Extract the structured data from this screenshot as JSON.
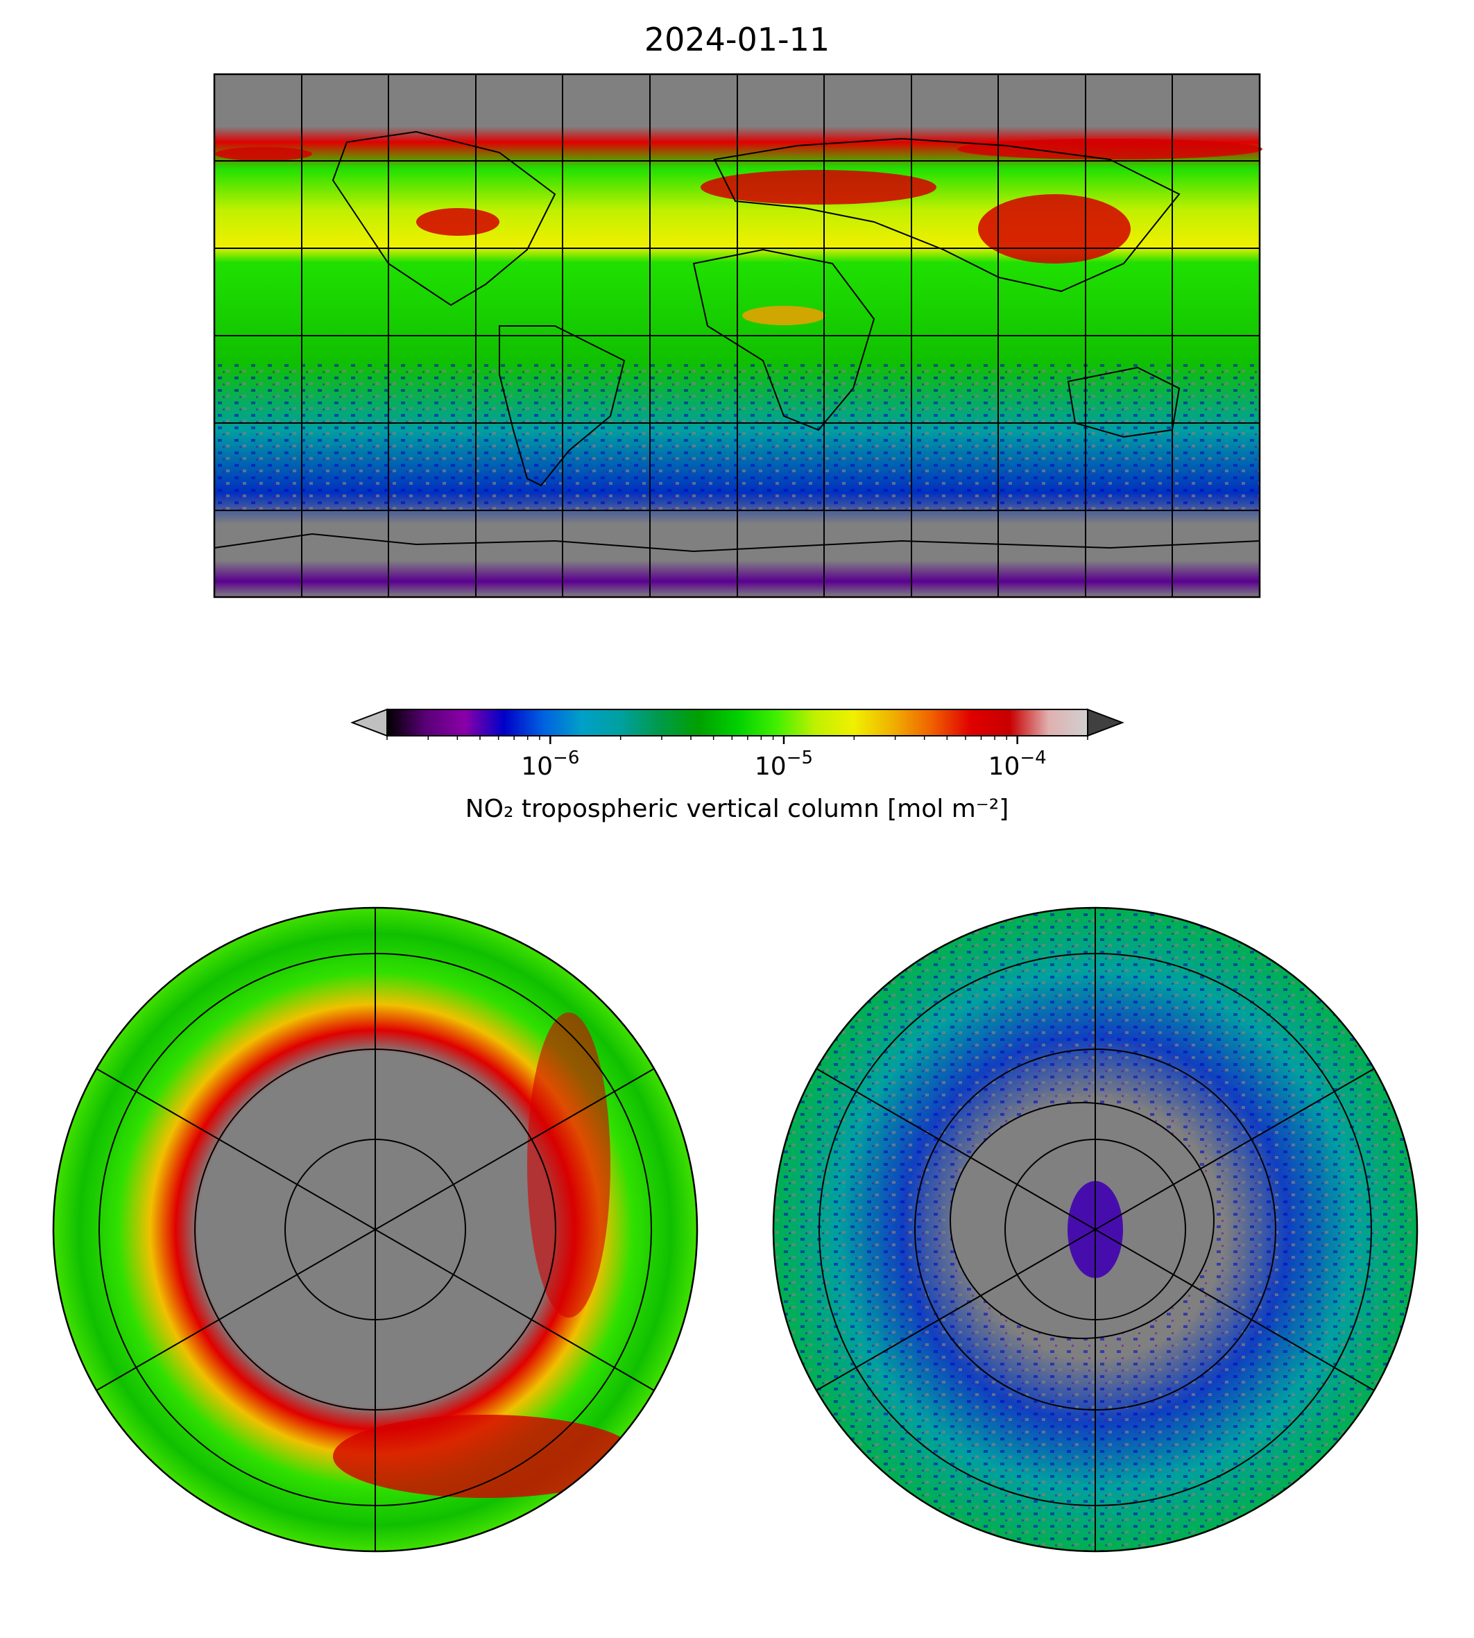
{
  "title": "2024-01-11",
  "colorbar": {
    "label": "NO₂ tropospheric vertical column [mol m⁻²]",
    "scale": "log",
    "range": [
      2e-07,
      0.0002
    ],
    "ticks": [
      {
        "value": 1e-06,
        "label_base": "10",
        "label_exp": "−6"
      },
      {
        "value": 1e-05,
        "label_base": "10",
        "label_exp": "−5"
      },
      {
        "value": 0.0001,
        "label_base": "10",
        "label_exp": "−4"
      }
    ],
    "colors": [
      "#000000",
      "#5a0078",
      "#8a00a8",
      "#0000c8",
      "#0060e0",
      "#00a0c8",
      "#00a0a0",
      "#009a4a",
      "#00a000",
      "#00d000",
      "#40f000",
      "#c0f000",
      "#f0f000",
      "#f0b000",
      "#f06000",
      "#e00000",
      "#c80000",
      "#e0b0b0",
      "#d0d0d0"
    ],
    "under_color": "#c0c0c0",
    "over_color": "#404040"
  },
  "panels": {
    "global": {
      "projection": "plate carree",
      "extent": "global"
    },
    "north": {
      "projection": "north polar stereographic"
    },
    "south": {
      "projection": "south polar stereographic"
    }
  },
  "colors": {
    "no_data": "#808080",
    "background": "#ffffff"
  }
}
